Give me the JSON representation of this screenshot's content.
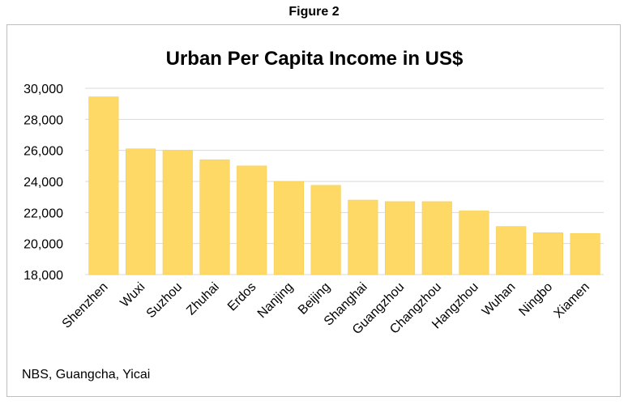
{
  "figure_label": "Figure 2",
  "source_note": "NBS, Guangcha, Yicai",
  "colors": {
    "bar": "#FFD966",
    "bar_edge": "#F2C94C",
    "grid": "#D9D9D9",
    "text": "#000000"
  },
  "chart_data": {
    "type": "bar",
    "title": "Urban Per Capita Income in US$",
    "xlabel": "",
    "ylabel": "",
    "ylim": [
      18000,
      30000
    ],
    "yticks": [
      18000,
      20000,
      22000,
      24000,
      26000,
      28000,
      30000
    ],
    "ytick_labels": [
      "18,000",
      "20,000",
      "22,000",
      "24,000",
      "26,000",
      "28,000",
      "30,000"
    ],
    "grid": true,
    "legend": "none",
    "categories": [
      "Shenzhen",
      "Wuxi",
      "Suzhou",
      "Zhuhai",
      "Erdos",
      "Nanjing",
      "Beijing",
      "Shanghai",
      "Guangzhou",
      "Changzhou",
      "Hangzhou",
      "Wuhan",
      "Ningbo",
      "Xiamen"
    ],
    "values": [
      29450,
      26100,
      26000,
      25400,
      25000,
      24000,
      23750,
      22800,
      22700,
      22700,
      22100,
      21100,
      20700,
      20650
    ]
  }
}
